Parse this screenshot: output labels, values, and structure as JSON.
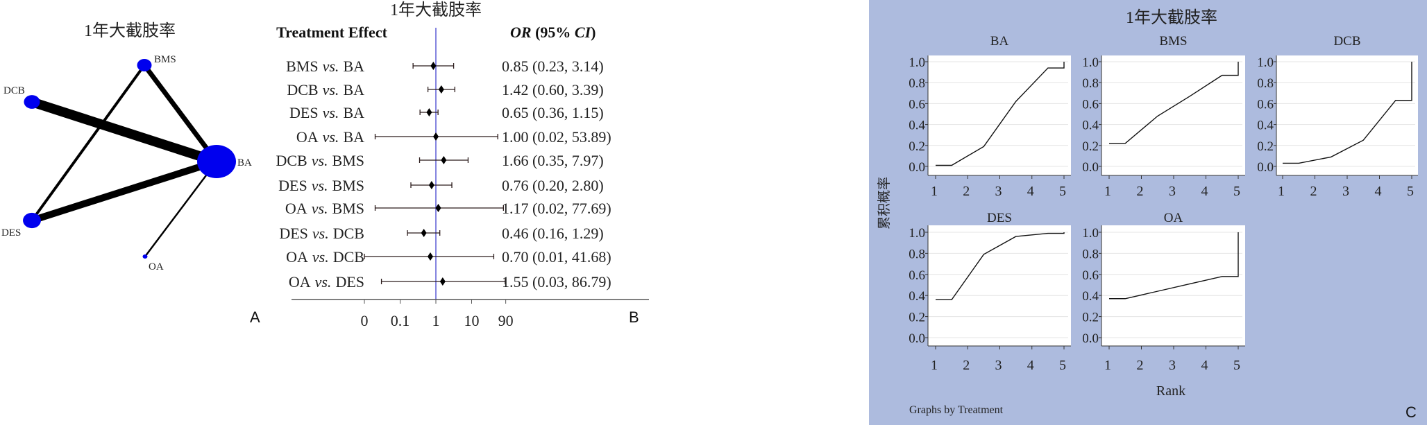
{
  "panel_a": {
    "title": "1年大截肢率",
    "letter": "A",
    "nodes": [
      {
        "name": "BMS",
        "size": 3
      },
      {
        "name": "DCB",
        "size": 3.3
      },
      {
        "name": "BA",
        "size": 8
      },
      {
        "name": "DES",
        "size": 3.7
      },
      {
        "name": "OA",
        "size": 1
      }
    ],
    "edges": [
      {
        "from": "BMS",
        "to": "BA",
        "weight": 7
      },
      {
        "from": "BMS",
        "to": "DES",
        "weight": 4
      },
      {
        "from": "DCB",
        "to": "BA",
        "weight": 14
      },
      {
        "from": "DES",
        "to": "BA",
        "weight": 10
      },
      {
        "from": "OA",
        "to": "BA",
        "weight": 2.5
      }
    ]
  },
  "panel_b": {
    "title": "1年大截肢率",
    "header_left": "Treatment Effect",
    "header_right_or": "OR",
    "header_right_rest": " (95% ",
    "header_right_ci": "CI",
    "header_right_close": ")",
    "letter": "B",
    "vs_word": "vs.",
    "null_line_color": "#3333cc"
  },
  "chart_data": [
    {
      "type": "forest",
      "title": "1年大截肢率",
      "xscale": "log",
      "xticks": [
        0.01,
        0.1,
        1,
        10,
        90
      ],
      "xtick_labels": [
        "0",
        "0.1",
        "1",
        "10",
        "90"
      ],
      "rows": [
        {
          "a": "BMS",
          "b": "BA",
          "or": 0.85,
          "lo": 0.23,
          "hi": 3.14,
          "text": "0.85 (0.23, 3.14)"
        },
        {
          "a": "DCB",
          "b": "BA",
          "or": 1.42,
          "lo": 0.6,
          "hi": 3.39,
          "text": "1.42 (0.60, 3.39)"
        },
        {
          "a": "DES",
          "b": "BA",
          "or": 0.65,
          "lo": 0.36,
          "hi": 1.15,
          "text": "0.65 (0.36, 1.15)"
        },
        {
          "a": "OA",
          "b": "BA",
          "or": 1.0,
          "lo": 0.02,
          "hi": 53.89,
          "text": "1.00 (0.02, 53.89)"
        },
        {
          "a": "DCB",
          "b": "BMS",
          "or": 1.66,
          "lo": 0.35,
          "hi": 7.97,
          "text": "1.66 (0.35, 7.97)"
        },
        {
          "a": "DES",
          "b": "BMS",
          "or": 0.76,
          "lo": 0.2,
          "hi": 2.8,
          "text": "0.76 (0.20, 2.80)"
        },
        {
          "a": "OA",
          "b": "BMS",
          "or": 1.17,
          "lo": 0.02,
          "hi": 77.69,
          "text": "1.17 (0.02, 77.69)"
        },
        {
          "a": "DES",
          "b": "DCB",
          "or": 0.46,
          "lo": 0.16,
          "hi": 1.29,
          "text": "0.46 (0.16, 1.29)"
        },
        {
          "a": "OA",
          "b": "DCB",
          "or": 0.7,
          "lo": 0.01,
          "hi": 41.68,
          "text": "0.70 (0.01, 41.68)"
        },
        {
          "a": "OA",
          "b": "DES",
          "or": 1.55,
          "lo": 0.03,
          "hi": 86.79,
          "text": "1.55 (0.03, 86.79)"
        }
      ]
    },
    {
      "type": "line",
      "title": "1年大截肢率",
      "ylabel": "累积概率",
      "xlabel": "Rank",
      "note": "Graphs by Treatment",
      "letter": "C",
      "xticks": [
        "1",
        "2",
        "3",
        "4",
        "5"
      ],
      "yticks": [
        "0.0",
        "0.2",
        "0.4",
        "0.6",
        "0.8",
        "1.0"
      ],
      "ylim": [
        0,
        1
      ],
      "background": "#adbbde",
      "grid": true,
      "series": [
        {
          "name": "BA",
          "values": [
            0.01,
            0.19,
            0.62,
            0.94,
            1.0
          ]
        },
        {
          "name": "BMS",
          "values": [
            0.22,
            0.48,
            0.67,
            0.87,
            1.0
          ]
        },
        {
          "name": "DCB",
          "values": [
            0.03,
            0.09,
            0.25,
            0.63,
            1.0
          ]
        },
        {
          "name": "DES",
          "values": [
            0.36,
            0.79,
            0.96,
            0.99,
            1.0
          ]
        },
        {
          "name": "OA",
          "values": [
            0.37,
            0.44,
            0.51,
            0.58,
            1.0
          ]
        }
      ]
    }
  ]
}
